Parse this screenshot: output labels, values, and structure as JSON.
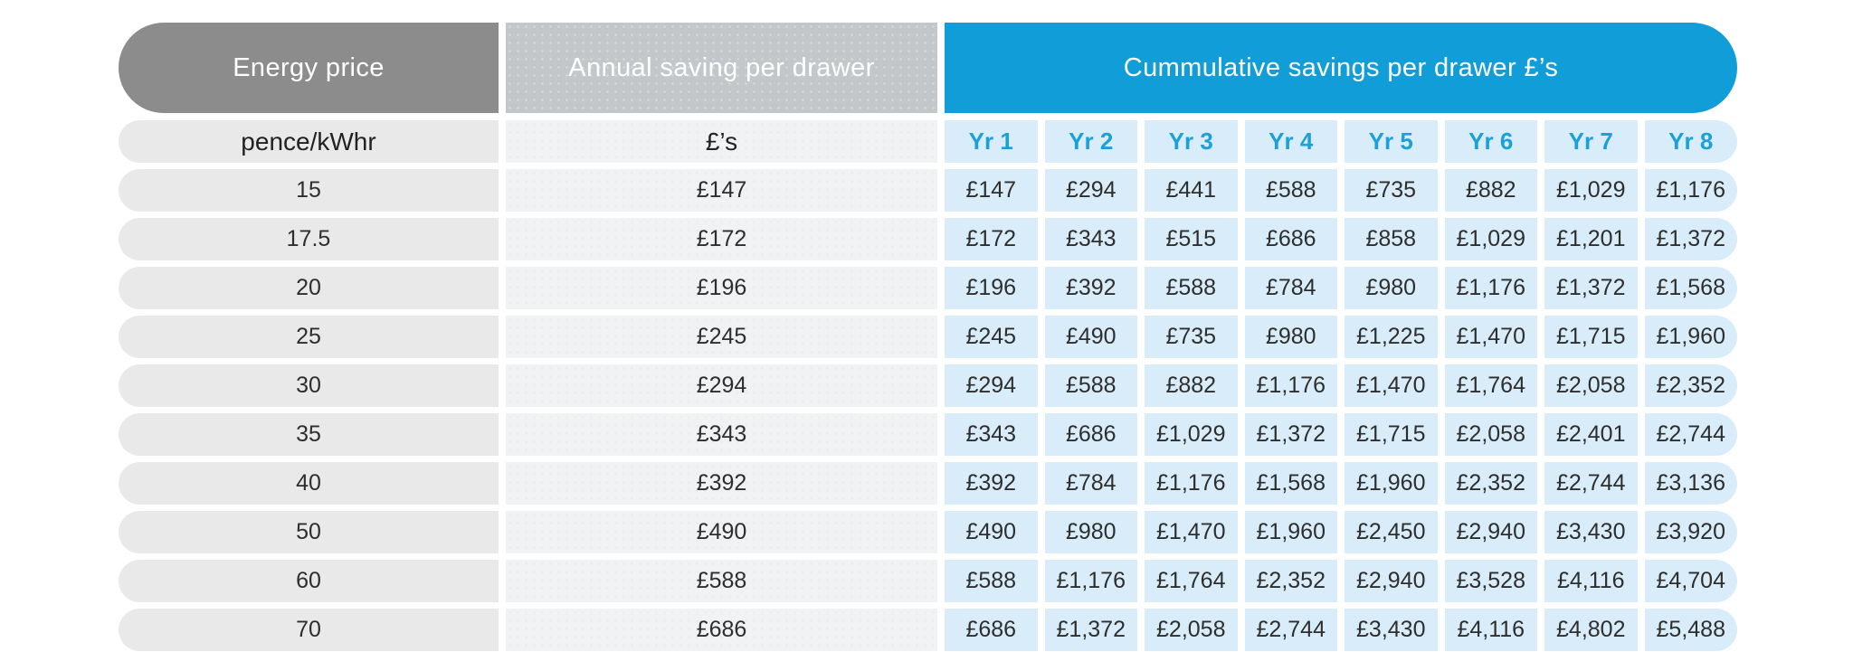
{
  "colors": {
    "header_energy_price_bg": "#8c8c8c",
    "header_annual_saving_bg": "#c3c7ca",
    "header_cumulative_bg": "#119dd8",
    "year_label_text": "#1ca0da",
    "price_cell_bg": "#e9e9e9",
    "annual_cell_bg": "#f1f2f3",
    "year_cell_bg": "#d8edf9",
    "body_text": "#2e2e2e",
    "header_text": "#ffffff"
  },
  "chart_data": {
    "type": "table",
    "title": "Cummulative savings per drawer £’s",
    "column_groups": [
      {
        "label": "Energy price",
        "color": "#8c8c8c"
      },
      {
        "label": "Annual saving per drawer",
        "color": "#c3c7ca"
      },
      {
        "label": "Cummulative savings per drawer £’s",
        "color": "#119dd8"
      }
    ],
    "subheader": {
      "energy_price_units": "pence/kWhr",
      "annual_saving_units": "£’s",
      "years": [
        "Yr 1",
        "Yr 2",
        "Yr 3",
        "Yr 4",
        "Yr 5",
        "Yr 6",
        "Yr 7",
        "Yr 8"
      ]
    },
    "rows": [
      {
        "price": "15",
        "annual": "£147",
        "cumulative": [
          "£147",
          "£294",
          "£441",
          "£588",
          "£735",
          "£882",
          "£1,029",
          "£1,176"
        ]
      },
      {
        "price": "17.5",
        "annual": "£172",
        "cumulative": [
          "£172",
          "£343",
          "£515",
          "£686",
          "£858",
          "£1,029",
          "£1,201",
          "£1,372"
        ]
      },
      {
        "price": "20",
        "annual": "£196",
        "cumulative": [
          "£196",
          "£392",
          "£588",
          "£784",
          "£980",
          "£1,176",
          "£1,372",
          "£1,568"
        ]
      },
      {
        "price": "25",
        "annual": "£245",
        "cumulative": [
          "£245",
          "£490",
          "£735",
          "£980",
          "£1,225",
          "£1,470",
          "£1,715",
          "£1,960"
        ]
      },
      {
        "price": "30",
        "annual": "£294",
        "cumulative": [
          "£294",
          "£588",
          "£882",
          "£1,176",
          "£1,470",
          "£1,764",
          "£2,058",
          "£2,352"
        ]
      },
      {
        "price": "35",
        "annual": "£343",
        "cumulative": [
          "£343",
          "£686",
          "£1,029",
          "£1,372",
          "£1,715",
          "£2,058",
          "£2,401",
          "£2,744"
        ]
      },
      {
        "price": "40",
        "annual": "£392",
        "cumulative": [
          "£392",
          "£784",
          "£1,176",
          "£1,568",
          "£1,960",
          "£2,352",
          "£2,744",
          "£3,136"
        ]
      },
      {
        "price": "50",
        "annual": "£490",
        "cumulative": [
          "£490",
          "£980",
          "£1,470",
          "£1,960",
          "£2,450",
          "£2,940",
          "£3,430",
          "£3,920"
        ]
      },
      {
        "price": "60",
        "annual": "£588",
        "cumulative": [
          "£588",
          "£1,176",
          "£1,764",
          "£2,352",
          "£2,940",
          "£3,528",
          "£4,116",
          "£4,704"
        ]
      },
      {
        "price": "70",
        "annual": "£686",
        "cumulative": [
          "£686",
          "£1,372",
          "£2,058",
          "£2,744",
          "£3,430",
          "£4,116",
          "£4,802",
          "£5,488"
        ]
      }
    ]
  }
}
